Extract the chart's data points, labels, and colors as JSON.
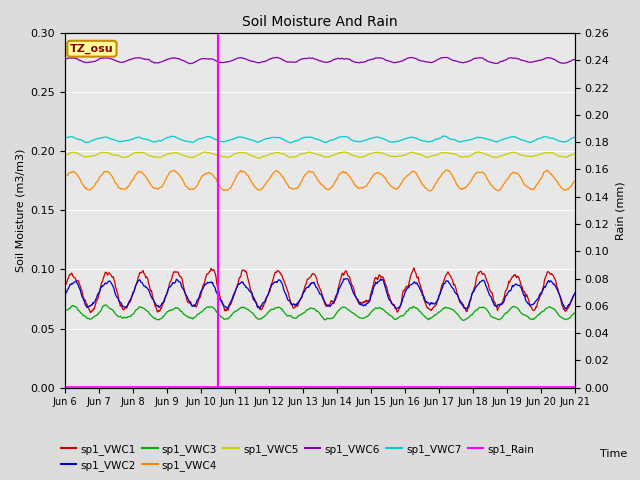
{
  "title": "Soil Moisture And Rain",
  "xlabel": "Time",
  "ylabel_left": "Soil Moisture (m3/m3)",
  "ylabel_right": "Rain (mm)",
  "ylim_left": [
    0.0,
    0.3
  ],
  "ylim_right": [
    0.0,
    0.26
  ],
  "yticks_left": [
    0.0,
    0.05,
    0.1,
    0.15,
    0.2,
    0.25,
    0.3
  ],
  "yticks_right": [
    0.0,
    0.02,
    0.04,
    0.06,
    0.08,
    0.1,
    0.12,
    0.14,
    0.16,
    0.18,
    0.2,
    0.22,
    0.24,
    0.26
  ],
  "bg_color": "#dcdcdc",
  "plot_bg": "#e8e8e8",
  "site_label": "TZ_osu",
  "vline_x": 4.5,
  "n_points": 720,
  "series": {
    "sp1_VWC1": {
      "color": "#cc0000",
      "base": 0.082,
      "amp": 0.016,
      "period": 1.0,
      "phase": 0.0,
      "noise": 0.006
    },
    "sp1_VWC2": {
      "color": "#0000cc",
      "base": 0.079,
      "amp": 0.011,
      "period": 1.0,
      "phase": 0.05,
      "noise": 0.004
    },
    "sp1_VWC3": {
      "color": "#00aa00",
      "base": 0.063,
      "amp": 0.005,
      "period": 1.0,
      "phase": 0.2,
      "noise": 0.002
    },
    "sp1_VWC4": {
      "color": "#ff8800",
      "base": 0.175,
      "amp": 0.008,
      "period": 1.0,
      "phase": 0.3,
      "noise": 0.002
    },
    "sp1_VWC5": {
      "color": "#cccc00",
      "base": 0.197,
      "amp": 0.002,
      "period": 1.0,
      "phase": 0.4,
      "noise": 0.001
    },
    "sp1_VWC6": {
      "color": "#8800aa",
      "base": 0.277,
      "amp": 0.002,
      "period": 1.0,
      "phase": 0.5,
      "noise": 0.001
    },
    "sp1_VWC7": {
      "color": "#00cccc",
      "base": 0.21,
      "amp": 0.002,
      "period": 1.0,
      "phase": 0.6,
      "noise": 0.001
    },
    "sp1_Rain": {
      "color": "#ff00ff",
      "base": 0.0005,
      "amp": 0.0,
      "period": 1.0,
      "phase": 0.0,
      "noise": 0.0
    }
  },
  "legend_order": [
    "sp1_VWC1",
    "sp1_VWC2",
    "sp1_VWC3",
    "sp1_VWC4",
    "sp1_VWC5",
    "sp1_VWC6",
    "sp1_VWC7",
    "sp1_Rain"
  ],
  "xtick_labels": [
    "Jun 6",
    "Jun 7",
    "Jun 8",
    "Jun 9",
    "Jun 10",
    "Jun 11",
    "Jun 12",
    "Jun 13",
    "Jun 14",
    "Jun 15",
    "Jun 16",
    "Jun 17",
    "Jun 18",
    "Jun 19",
    "Jun 20",
    "Jun 21"
  ],
  "xtick_positions": [
    0,
    1,
    2,
    3,
    4,
    5,
    6,
    7,
    8,
    9,
    10,
    11,
    12,
    13,
    14,
    15
  ]
}
